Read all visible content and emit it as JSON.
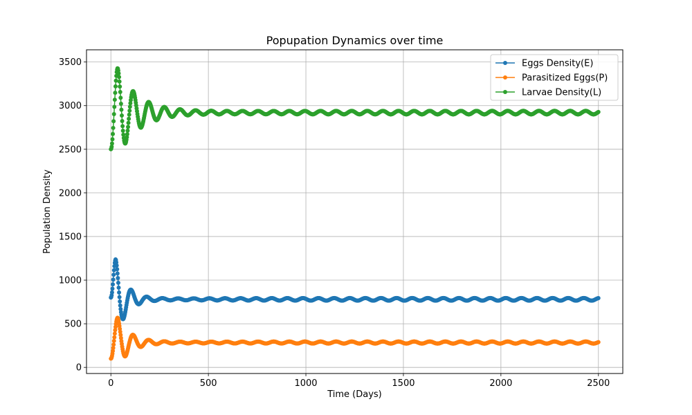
{
  "chart_data": {
    "type": "line",
    "title": "Popupation Dynamics over time",
    "xlabel": "Time (Days)",
    "ylabel": "Population Density",
    "xlim": [
      -125,
      2625
    ],
    "ylim": [
      -70,
      3640
    ],
    "xticks": [
      0,
      500,
      1000,
      1500,
      2000,
      2500
    ],
    "yticks": [
      0,
      500,
      1000,
      1500,
      2000,
      2500,
      3000,
      3500
    ],
    "grid": true,
    "legend_position": "top-right",
    "series": [
      {
        "name": "Eggs Density(E)",
        "color": "#1f77b4",
        "marker": "circle",
        "start": 800,
        "equilibrium": 780,
        "first_peak": 1240,
        "first_trough": 560,
        "first_peak_day": 25,
        "period_days": 80,
        "decay_days": 350,
        "residual_amplitude": 15
      },
      {
        "name": "Parasitized Eggs(P)",
        "color": "#ff7f0e",
        "marker": "circle",
        "start": 100,
        "equilibrium": 285,
        "first_peak": 570,
        "first_trough": 130,
        "first_peak_day": 35,
        "period_days": 80,
        "decay_days": 330,
        "residual_amplitude": 12
      },
      {
        "name": "Larvae Density(L)",
        "color": "#2ca02c",
        "marker": "circle",
        "start": 2500,
        "equilibrium": 2920,
        "first_peak": 3430,
        "first_trough": 2570,
        "first_peak_day": 35,
        "period_days": 80,
        "decay_days": 380,
        "residual_amplitude": 20
      }
    ],
    "x_max": 2500
  }
}
